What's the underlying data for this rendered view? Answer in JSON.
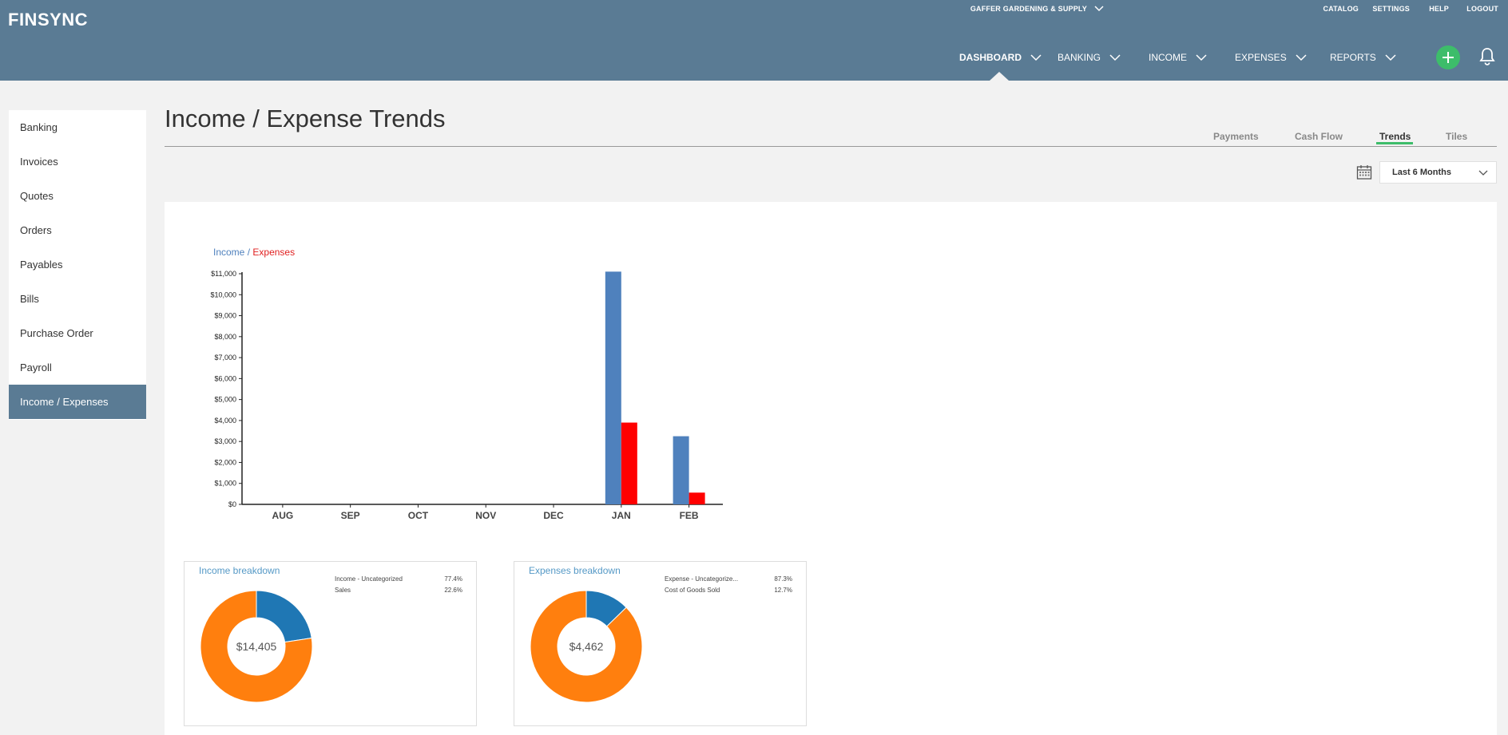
{
  "header": {
    "logo": "FINSYNC",
    "company": "GAFFER GARDENING & SUPPLY",
    "utility": {
      "catalog": "CATALOG",
      "settings": "SETTINGS",
      "help": "HELP",
      "logout": "LOGOUT"
    },
    "nav": {
      "dashboard": "DASHBOARD",
      "banking": "BANKING",
      "income": "INCOME",
      "expenses": "EXPENSES",
      "reports": "REPORTS"
    }
  },
  "sidebar": {
    "items": [
      {
        "label": "Banking"
      },
      {
        "label": "Invoices"
      },
      {
        "label": "Quotes"
      },
      {
        "label": "Orders"
      },
      {
        "label": "Payables"
      },
      {
        "label": "Bills"
      },
      {
        "label": "Purchase Order"
      },
      {
        "label": "Payroll"
      },
      {
        "label": "Income / Expenses",
        "active": true
      }
    ]
  },
  "page": {
    "title": "Income / Expense Trends",
    "tabs": {
      "payments": "Payments",
      "cashflow": "Cash Flow",
      "trends": "Trends",
      "tiles": "Tiles"
    },
    "period": "Last 6 Months"
  },
  "colors": {
    "header": "#5a7b94",
    "accent_green": "#3dbd6a",
    "income": "#4f81bd",
    "expenses": "#ff0000",
    "donut_orange": "#ff7f0e",
    "donut_blue": "#1f77b4"
  },
  "chart_data": [
    {
      "type": "bar",
      "legend": {
        "income": "Income",
        "separator": "/",
        "expenses": "Expenses"
      },
      "categories": [
        "AUG",
        "SEP",
        "OCT",
        "NOV",
        "DEC",
        "JAN",
        "FEB"
      ],
      "series": [
        {
          "name": "Income",
          "values": [
            0,
            0,
            0,
            0,
            0,
            11100,
            3250
          ]
        },
        {
          "name": "Expenses",
          "values": [
            0,
            0,
            0,
            0,
            0,
            3900,
            560
          ]
        }
      ],
      "yticks": [
        "$0",
        "$1,000",
        "$2,000",
        "$3,000",
        "$4,000",
        "$5,000",
        "$6,000",
        "$7,000",
        "$8,000",
        "$9,000",
        "$10,000",
        "$11,000"
      ],
      "ylim": [
        0,
        11000
      ]
    },
    {
      "type": "pie",
      "title": "Income breakdown",
      "total": "$14,405",
      "slices": [
        {
          "label": "Income - Uncategorized",
          "pct": "77.4%",
          "value": 77.4,
          "color": "#ff7f0e"
        },
        {
          "label": "Sales",
          "pct": "22.6%",
          "value": 22.6,
          "color": "#1f77b4"
        }
      ]
    },
    {
      "type": "pie",
      "title": "Expenses breakdown",
      "total": "$4,462",
      "slices": [
        {
          "label": "Expense - Uncategorize...",
          "pct": "87.3%",
          "value": 87.3,
          "color": "#ff7f0e"
        },
        {
          "label": "Cost of Goods Sold",
          "pct": "12.7%",
          "value": 12.7,
          "color": "#1f77b4"
        }
      ]
    }
  ]
}
